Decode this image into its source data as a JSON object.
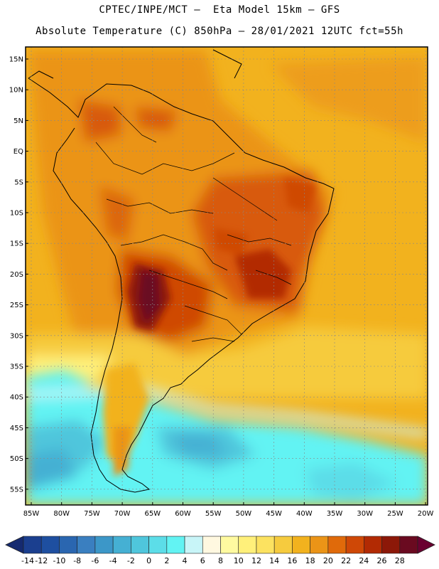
{
  "title_line1": "CPTEC/INPE/MCT –  Eta Model 15km – GFS",
  "title_line2": "Absolute Temperature (C) 850hPa – 28/01/2021 12UTC fct=55h",
  "lat_labels": [
    "15N",
    "10N",
    "5N",
    "EQ",
    "5S",
    "10S",
    "15S",
    "20S",
    "25S",
    "30S",
    "35S",
    "40S",
    "45S",
    "50S",
    "55S"
  ],
  "lon_labels": [
    "85W",
    "80W",
    "75W",
    "70W",
    "65W",
    "60W",
    "55W",
    "50W",
    "45W",
    "40W",
    "35W",
    "30W",
    "25W",
    "20W"
  ],
  "colorbar": {
    "labels": [
      "-14",
      "-12",
      "-10",
      "-8",
      "-6",
      "-4",
      "-2",
      "0",
      "2",
      "4",
      "6",
      "8",
      "10",
      "12",
      "14",
      "16",
      "18",
      "20",
      "22",
      "24",
      "26",
      "28"
    ],
    "colors": [
      "#1b3f8f",
      "#1e4fa0",
      "#2a66b0",
      "#3a7fc0",
      "#3c97c8",
      "#45b0d3",
      "#4fc6dc",
      "#5cdde8",
      "#62f3f3",
      "#c8f5f8",
      "#fff8e0",
      "#fffaa0",
      "#fff07a",
      "#fce260",
      "#f6cb3e",
      "#f2b21e",
      "#eb9417",
      "#e06a0a",
      "#cf4806",
      "#b22a03",
      "#8c1808",
      "#6a0a20"
    ],
    "low_color": "#152a70",
    "high_color": "#6a0030"
  }
}
